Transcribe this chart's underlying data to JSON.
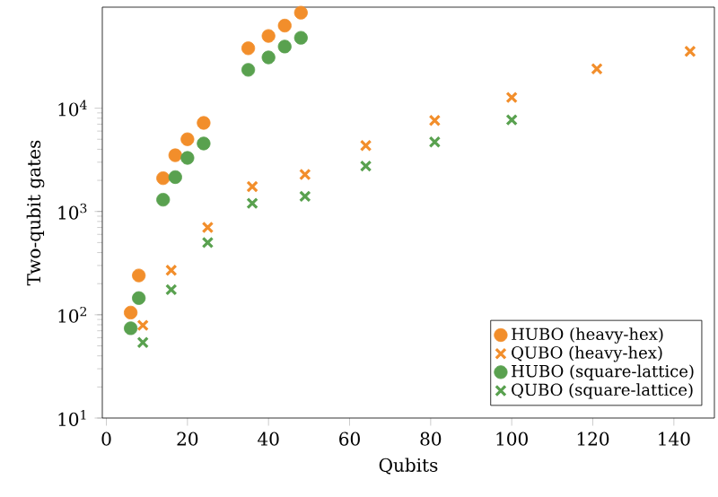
{
  "chart_data": {
    "type": "scatter",
    "xlabel": "Qubits",
    "ylabel": "Two-qubit gates",
    "log": "y",
    "grid": false,
    "legend": "bottom right",
    "xlim": [
      -1,
      150
    ],
    "ylim": [
      10,
      95000
    ],
    "xticks": [
      0,
      20,
      40,
      60,
      80,
      100,
      120,
      140
    ],
    "yticks": [
      {
        "value": 10,
        "label": "10$^{1}$"
      },
      {
        "value": 100,
        "label": "10$^{2}$"
      },
      {
        "value": 1000,
        "label": "10$^{3}$"
      },
      {
        "value": 10000,
        "label": "10$^{4}$"
      }
    ],
    "series": [
      {
        "name": "HUBO (heavy-hex)",
        "color": "#f28e2b",
        "marker": "circle",
        "x": [
          6,
          8,
          14,
          17,
          20,
          24,
          35,
          40,
          44,
          48
        ],
        "values": [
          105,
          240,
          2100,
          3500,
          5000,
          7200,
          38000,
          50000,
          63000,
          84000
        ]
      },
      {
        "name": "QUBO (heavy-hex)",
        "color": "#f28e2b",
        "marker": "cross",
        "x": [
          9,
          16,
          25,
          36,
          49,
          64,
          81,
          100,
          121,
          144
        ],
        "values": [
          79,
          270,
          700,
          1740,
          2280,
          4350,
          7600,
          12700,
          24000,
          35500
        ]
      },
      {
        "name": "HUBO (square-lattice)",
        "color": "#59a14f",
        "marker": "circle",
        "x": [
          6,
          8,
          14,
          17,
          20,
          24,
          35,
          40,
          44,
          48
        ],
        "values": [
          74,
          145,
          1300,
          2150,
          3300,
          4550,
          23500,
          31000,
          39500,
          48000
        ]
      },
      {
        "name": "QUBO (square-lattice)",
        "color": "#59a14f",
        "marker": "cross",
        "x": [
          9,
          16,
          25,
          36,
          49,
          64,
          81,
          100
        ],
        "values": [
          54,
          175,
          500,
          1200,
          1400,
          2750,
          4700,
          7700
        ]
      }
    ]
  }
}
